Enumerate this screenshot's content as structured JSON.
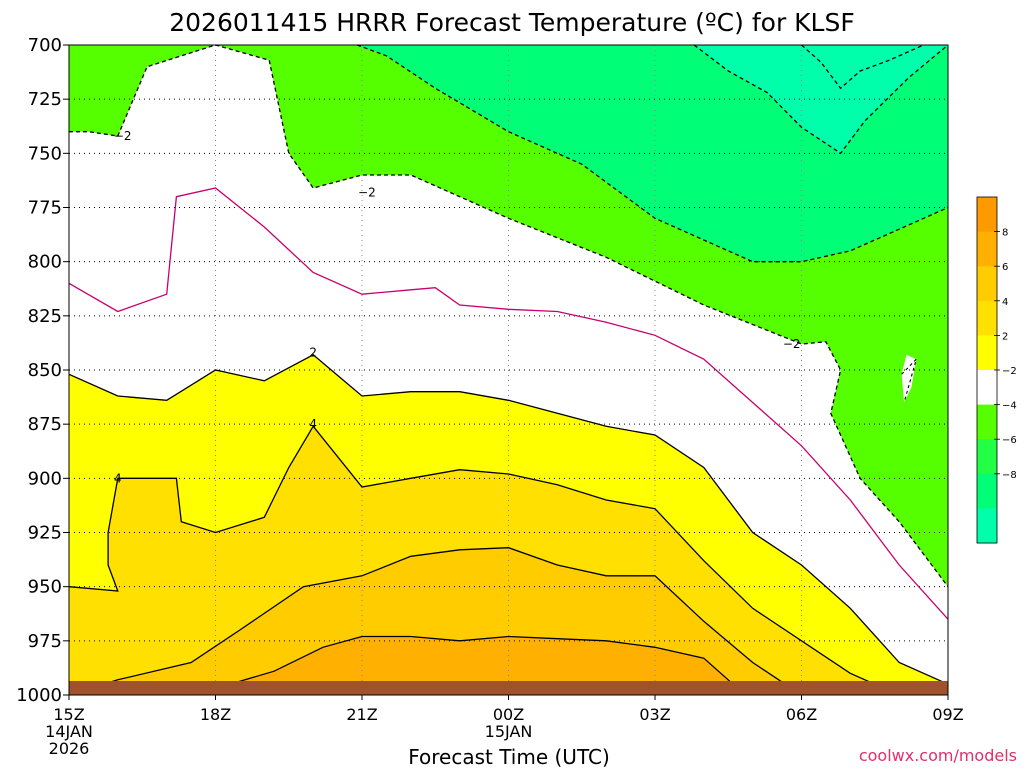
{
  "chart_data": {
    "type": "heatmap",
    "title": "2026011415 HRRR Forecast Temperature (ºC) for KLSF",
    "xlabel": "Forecast Time (UTC)",
    "credit": "coolwx.com/models",
    "y_ticks": [
      "700",
      "725",
      "750",
      "775",
      "800",
      "825",
      "850",
      "875",
      "900",
      "925",
      "950",
      "975",
      "1000"
    ],
    "x_ticks": [
      {
        "hour": 0,
        "lines": [
          "15Z",
          "14JAN",
          "2026"
        ]
      },
      {
        "hour": 3,
        "lines": [
          "18Z"
        ]
      },
      {
        "hour": 6,
        "lines": [
          "21Z"
        ]
      },
      {
        "hour": 9,
        "lines": [
          "00Z",
          "15JAN"
        ]
      },
      {
        "hour": 12,
        "lines": [
          "03Z"
        ]
      },
      {
        "hour": 15,
        "lines": [
          "06Z"
        ]
      },
      {
        "hour": 18,
        "lines": [
          "09Z"
        ]
      }
    ],
    "xlim": [
      0,
      18
    ],
    "ylim": [
      700,
      1000
    ],
    "y_reversed": true,
    "grid": true,
    "colorbar": {
      "ticks": [
        "8",
        "6",
        "4",
        "2",
        "−2",
        "−4",
        "−6",
        "−8"
      ],
      "colors": [
        "#ff9900",
        "#ffb000",
        "#ffcc00",
        "#ffe000",
        "#ffff00",
        "#ffffff",
        "#55ff00",
        "#22ff44",
        "#00ff77",
        "#00ffaa"
      ]
    },
    "fill_colors": {
      "below_m6": "#00ffaa",
      "m6_m4": "#00ff77",
      "m4_m2": "#55ff00",
      "m2_2": "#ffffff",
      "p2_4": "#ffff00",
      "p4_6": "#ffe000",
      "p6_8": "#ffcc00",
      "p8_10": "#ffb000",
      "above_10": "#ff9900",
      "ground": "#a0522d"
    },
    "contour_labels": [
      {
        "text": "−2",
        "hour": 1.1,
        "p": 742
      },
      {
        "text": "−2",
        "hour": 6.1,
        "p": 768
      },
      {
        "text": "−2",
        "hour": 14.8,
        "p": 838
      },
      {
        "text": "2",
        "hour": 5.0,
        "p": 842
      },
      {
        "text": "4",
        "hour": 5.0,
        "p": 875
      },
      {
        "text": "4",
        "hour": 1.0,
        "p": 900
      }
    ],
    "isotherms": {
      "m2": [
        [
          0,
          740
        ],
        [
          0.4,
          740
        ],
        [
          1.0,
          742
        ],
        [
          1.6,
          710
        ],
        [
          3.0,
          700
        ],
        [
          4.1,
          707
        ],
        [
          4.5,
          750
        ],
        [
          5.0,
          766
        ],
        [
          6.0,
          760
        ],
        [
          7.0,
          760
        ],
        [
          9.0,
          780
        ],
        [
          11.0,
          798
        ],
        [
          13.0,
          820
        ],
        [
          15.0,
          838
        ],
        [
          15.5,
          837
        ],
        [
          15.8,
          850
        ],
        [
          15.6,
          870
        ],
        [
          16.2,
          900
        ],
        [
          17.0,
          920
        ],
        [
          18.0,
          950
        ]
      ],
      "m4": [
        [
          5.9,
          700
        ],
        [
          6.5,
          705
        ],
        [
          7.5,
          720
        ],
        [
          9.0,
          740
        ],
        [
          10.5,
          755
        ],
        [
          12.0,
          780
        ],
        [
          13.0,
          790
        ],
        [
          14.0,
          800
        ],
        [
          15.0,
          800
        ],
        [
          16.0,
          795
        ],
        [
          17.0,
          785
        ],
        [
          18.0,
          775
        ]
      ],
      "m6": [
        [
          12.8,
          700
        ],
        [
          13.5,
          712
        ],
        [
          14.3,
          722
        ],
        [
          15.0,
          738
        ],
        [
          15.8,
          750
        ],
        [
          16.3,
          735
        ],
        [
          17.2,
          715
        ],
        [
          18.0,
          700
        ]
      ],
      "m8": [
        [
          15.0,
          700
        ],
        [
          15.4,
          708
        ],
        [
          15.8,
          720
        ],
        [
          16.2,
          712
        ],
        [
          16.8,
          707
        ],
        [
          17.5,
          700
        ]
      ],
      "p0": [
        [
          0,
          810
        ],
        [
          1.0,
          823
        ],
        [
          2.0,
          815
        ],
        [
          2.2,
          770
        ],
        [
          3.0,
          766
        ],
        [
          4.0,
          784
        ],
        [
          5.0,
          805
        ],
        [
          6.0,
          815
        ],
        [
          7.0,
          813
        ],
        [
          7.5,
          812
        ],
        [
          8.0,
          820
        ],
        [
          9.0,
          822
        ],
        [
          10.0,
          823
        ],
        [
          11.0,
          828
        ],
        [
          12.0,
          834
        ],
        [
          13.0,
          845
        ],
        [
          14.0,
          865
        ],
        [
          15.0,
          885
        ],
        [
          16.0,
          910
        ],
        [
          17.0,
          940
        ],
        [
          18.0,
          965
        ]
      ],
      "p2": [
        [
          0,
          852
        ],
        [
          1.0,
          862
        ],
        [
          2.0,
          864
        ],
        [
          3.0,
          850
        ],
        [
          4.0,
          855
        ],
        [
          5.0,
          843
        ],
        [
          6.0,
          862
        ],
        [
          7.0,
          860
        ],
        [
          8.0,
          860
        ],
        [
          9.0,
          864
        ],
        [
          10.0,
          870
        ],
        [
          11.0,
          876
        ],
        [
          12.0,
          880
        ],
        [
          13.0,
          895
        ],
        [
          14.0,
          925
        ],
        [
          15.0,
          940
        ],
        [
          16.0,
          960
        ],
        [
          17.0,
          985
        ],
        [
          18.0,
          995
        ]
      ],
      "p4": [
        [
          0,
          950
        ],
        [
          1.0,
          952
        ],
        [
          0.8,
          940
        ],
        [
          0.8,
          925
        ],
        [
          1.0,
          900
        ],
        [
          2.2,
          900
        ],
        [
          2.3,
          920
        ],
        [
          3.0,
          925
        ],
        [
          4.0,
          918
        ],
        [
          4.5,
          895
        ],
        [
          5.0,
          876
        ],
        [
          6.0,
          904
        ],
        [
          7.0,
          900
        ],
        [
          8.0,
          896
        ],
        [
          9.0,
          898
        ],
        [
          10.0,
          903
        ],
        [
          11.0,
          910
        ],
        [
          12.0,
          914
        ],
        [
          13.0,
          938
        ],
        [
          14.0,
          960
        ],
        [
          15.0,
          975
        ],
        [
          16.0,
          990
        ],
        [
          17.0,
          1000
        ]
      ],
      "p6": [
        [
          0,
          1000
        ],
        [
          1.0,
          993
        ],
        [
          2.5,
          985
        ],
        [
          3.5,
          970
        ],
        [
          4.8,
          950
        ],
        [
          6.0,
          945
        ],
        [
          7.0,
          936
        ],
        [
          8.0,
          933
        ],
        [
          9.0,
          932
        ],
        [
          10.0,
          940
        ],
        [
          11.0,
          945
        ],
        [
          12.0,
          945
        ],
        [
          13.0,
          966
        ],
        [
          14.0,
          985
        ],
        [
          15.0,
          1000
        ]
      ],
      "p8": [
        [
          2.5,
          1000
        ],
        [
          3.0,
          997
        ],
        [
          4.2,
          989
        ],
        [
          5.2,
          978
        ],
        [
          6.0,
          973
        ],
        [
          7.0,
          973
        ],
        [
          8.0,
          975
        ],
        [
          9.0,
          973
        ],
        [
          10.0,
          974
        ],
        [
          11.0,
          975
        ],
        [
          12.0,
          978
        ],
        [
          13.0,
          983
        ],
        [
          13.6,
          995
        ],
        [
          14.2,
          1000
        ]
      ]
    }
  }
}
